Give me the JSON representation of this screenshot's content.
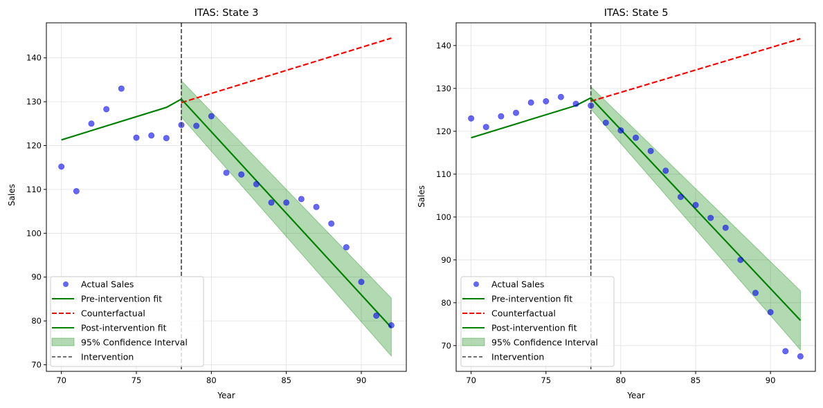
{
  "chart_data": [
    {
      "type": "scatter",
      "title": "ITAS: State 3",
      "xlabel": "Year",
      "ylabel": "Sales",
      "xlim": [
        69,
        93
      ],
      "ylim": [
        68.5,
        148
      ],
      "xticks": [
        "70",
        "75",
        "80",
        "85",
        "90"
      ],
      "yticks": [
        "70",
        "80",
        "90",
        "100",
        "110",
        "120",
        "130",
        "140"
      ],
      "grid": true,
      "legend_position": "lower-left",
      "intervention_x": 78,
      "actual": {
        "x": [
          70,
          71,
          72,
          73,
          74,
          75,
          76,
          77,
          78,
          79,
          80,
          81,
          82,
          83,
          84,
          85,
          86,
          87,
          88,
          89,
          90,
          91,
          92
        ],
        "y": [
          115.2,
          109.6,
          125.0,
          128.3,
          133.0,
          121.8,
          122.3,
          121.7,
          124.7,
          124.5,
          126.7,
          113.8,
          113.4,
          111.2,
          107.0,
          107.0,
          107.8,
          106.0,
          102.2,
          96.8,
          88.9,
          81.2,
          79.0
        ]
      },
      "pre_fit": {
        "x": [
          70,
          77,
          78
        ],
        "y": [
          121.3,
          128.7,
          130.6
        ]
      },
      "counterfactual": {
        "x": [
          78,
          92
        ],
        "y": [
          129.8,
          144.5
        ]
      },
      "post_fit": {
        "x": [
          78,
          92
        ],
        "y": [
          130.6,
          78.5
        ]
      },
      "ci": {
        "x": [
          78,
          92
        ],
        "lower": [
          126.5,
          72.0
        ],
        "upper": [
          134.8,
          85.2
        ]
      },
      "legend": [
        "Actual Sales",
        "Pre-intervention fit",
        "Counterfactual",
        "Post-intervention fit",
        "95% Confidence Interval",
        "Intervention"
      ]
    },
    {
      "type": "scatter",
      "title": "ITAS: State 5",
      "xlabel": "Year",
      "ylabel": "Sales",
      "xlim": [
        69,
        93
      ],
      "ylim": [
        64,
        145.3
      ],
      "xticks": [
        "70",
        "75",
        "80",
        "85",
        "90"
      ],
      "yticks": [
        "70",
        "80",
        "90",
        "100",
        "110",
        "120",
        "130",
        "140"
      ],
      "grid": true,
      "legend_position": "lower-left",
      "intervention_x": 78,
      "actual": {
        "x": [
          70,
          71,
          72,
          73,
          74,
          75,
          76,
          77,
          78,
          79,
          80,
          81,
          82,
          83,
          84,
          85,
          86,
          87,
          88,
          89,
          90,
          91,
          92
        ],
        "y": [
          123.0,
          121.0,
          123.5,
          124.3,
          126.7,
          127.0,
          128.0,
          126.4,
          126.0,
          122.0,
          120.2,
          118.5,
          115.4,
          110.8,
          104.7,
          102.8,
          99.8,
          97.5,
          90.0,
          82.3,
          77.8,
          68.7,
          67.5
        ]
      },
      "pre_fit": {
        "x": [
          70,
          77,
          78
        ],
        "y": [
          118.5,
          126.0,
          127.8
        ]
      },
      "counterfactual": {
        "x": [
          78,
          92
        ],
        "y": [
          127.0,
          141.6
        ]
      },
      "post_fit": {
        "x": [
          78,
          92
        ],
        "y": [
          127.8,
          75.9
        ]
      },
      "ci": {
        "x": [
          78,
          92
        ],
        "lower": [
          125.2,
          69.0
        ],
        "upper": [
          130.4,
          82.8
        ]
      },
      "legend": [
        "Actual Sales",
        "Pre-intervention fit",
        "Counterfactual",
        "Post-intervention fit",
        "95% Confidence Interval",
        "Intervention"
      ]
    }
  ],
  "colors": {
    "actual": "#0000ee",
    "fit": "#008000",
    "counterfactual": "#ff0000",
    "ci": "#008000",
    "intervention": "#404040",
    "grid": "#e0e0e0"
  }
}
